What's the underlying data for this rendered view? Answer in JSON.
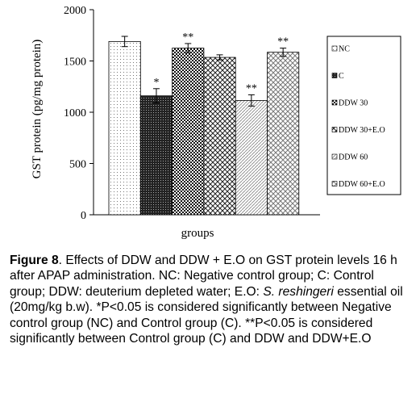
{
  "chart_data": {
    "type": "bar",
    "ylabel": "GST protein (pg/mg protein)",
    "xlabel": "groups",
    "ylim": [
      0,
      2000
    ],
    "yticks": [
      "0",
      "500",
      "1000",
      "1500",
      "2000"
    ],
    "grid": false,
    "legend_position": "right",
    "categories": [
      "NC",
      "C",
      "DDW 30",
      "DDW 30+E.O",
      "DDW 60",
      "DDW 60+E.O"
    ],
    "values": [
      1690,
      1160,
      1625,
      1535,
      1115,
      1585
    ],
    "errors": [
      50,
      70,
      45,
      25,
      55,
      40
    ],
    "annotations": [
      "",
      "*",
      "**",
      "",
      "**",
      "**"
    ],
    "legend": [
      "NC",
      "C",
      "DDW 30",
      "DDW 30+E.O",
      "DDW 60",
      "DDW 60+E.O"
    ]
  },
  "caption": {
    "fig_label": "Figure 8",
    "text1": ". Effects of DDW and DDW + E.O on GST protein levels 16 h after APAP administration. NC: Negative control group; C: Control group; DDW: deuterium depleted water; E.O: ",
    "species": "S. reshingeri",
    "text2": " essential oil (20mg/kg b.w). *P<0.05 is considered significantly between Negative control group (NC) and Control group (C). **P<0.05 is considered significantly between Control group (C) and DDW and DDW+E.O"
  }
}
